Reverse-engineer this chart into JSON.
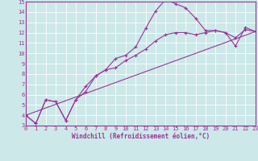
{
  "xlabel": "Windchill (Refroidissement éolien,°C)",
  "xlim": [
    0,
    23
  ],
  "ylim": [
    3,
    15
  ],
  "xticks": [
    0,
    1,
    2,
    3,
    4,
    5,
    6,
    7,
    8,
    9,
    10,
    11,
    12,
    13,
    14,
    15,
    16,
    17,
    18,
    19,
    20,
    21,
    22,
    23
  ],
  "yticks": [
    3,
    4,
    5,
    6,
    7,
    8,
    9,
    10,
    11,
    12,
    13,
    14,
    15
  ],
  "line_color": "#993399",
  "bg_color": "#cce8e8",
  "grid_color": "#ffffff",
  "line1_x": [
    0,
    1,
    2,
    3,
    4,
    5,
    6,
    7,
    8,
    9,
    10,
    11,
    12,
    13,
    14,
    15,
    16,
    17,
    18,
    19,
    20,
    21,
    22,
    23
  ],
  "line1_y": [
    4.0,
    3.2,
    5.5,
    5.3,
    3.5,
    5.5,
    6.3,
    7.8,
    8.4,
    9.5,
    9.8,
    10.6,
    12.4,
    14.1,
    15.2,
    14.8,
    14.4,
    13.4,
    12.2,
    12.2,
    12.0,
    10.7,
    12.5,
    12.1
  ],
  "line2_x": [
    0,
    1,
    2,
    3,
    4,
    5,
    6,
    7,
    8,
    9,
    10,
    11,
    12,
    13,
    14,
    15,
    16,
    17,
    18,
    19,
    20,
    21,
    22,
    23
  ],
  "line2_y": [
    4.0,
    3.2,
    5.5,
    5.3,
    3.5,
    5.5,
    6.8,
    7.8,
    8.4,
    8.6,
    9.3,
    9.8,
    10.4,
    11.2,
    11.8,
    12.0,
    12.0,
    11.8,
    12.0,
    12.2,
    12.0,
    11.5,
    12.3,
    12.1
  ],
  "line3_x": [
    0,
    23
  ],
  "line3_y": [
    4.0,
    12.1
  ],
  "marker": "+"
}
